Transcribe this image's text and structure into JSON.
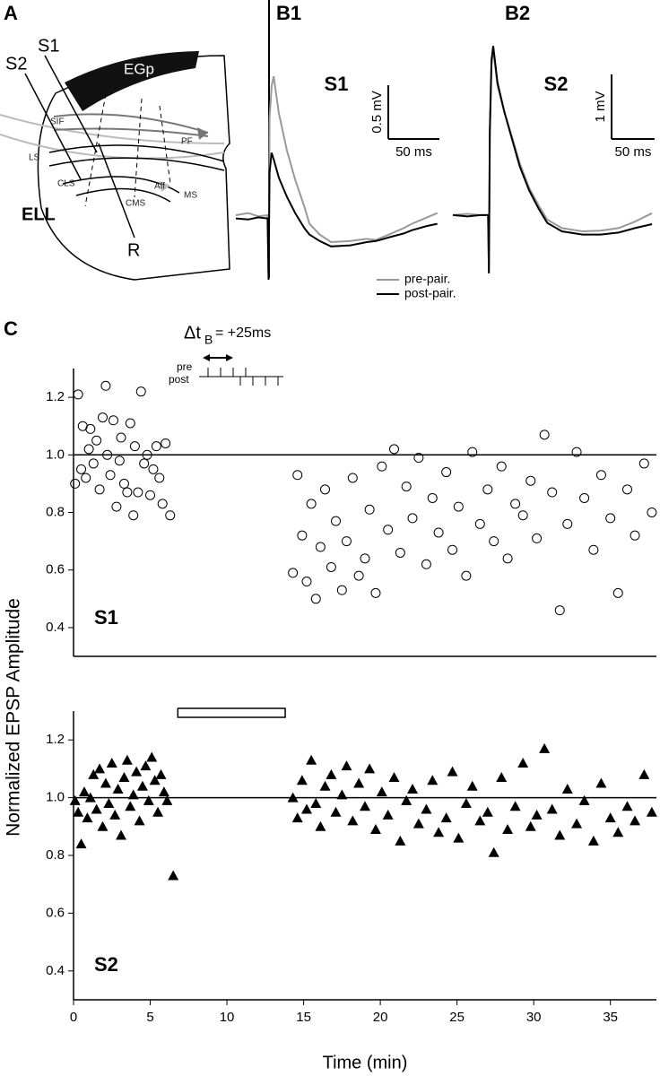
{
  "panels": [
    "A",
    "B1",
    "B2",
    "C"
  ],
  "diagram": {
    "labels": [
      "S1",
      "S2",
      "EGp",
      "SIF",
      "PF",
      "LS",
      "CLS",
      "CMS",
      "Aff",
      "MS",
      "ELL",
      "R"
    ]
  },
  "chart_data": [
    {
      "type": "line",
      "title": "S1",
      "xlim": [
        -32,
        167
      ],
      "ylim": [
        -0.6,
        2.0
      ],
      "x": [
        -32,
        -20,
        -10,
        -1,
        0,
        1,
        3,
        5,
        10,
        18,
        26,
        35,
        40,
        50,
        61,
        80,
        96,
        105,
        120,
        132,
        140,
        155,
        165
      ],
      "series": [
        {
          "name": "pre-pair.",
          "color": "#999999",
          "values": [
            0.0,
            0.02,
            -0.01,
            0.0,
            -0.6,
            0.9,
            1.2,
            1.29,
            0.95,
            0.6,
            0.33,
            0.08,
            -0.08,
            -0.18,
            -0.25,
            -0.24,
            -0.22,
            -0.23,
            -0.17,
            -0.12,
            -0.08,
            -0.02,
            0.02
          ]
        },
        {
          "name": "post-pair.",
          "color": "#000000",
          "values": [
            -0.03,
            -0.04,
            -0.02,
            -0.03,
            -0.6,
            0.4,
            0.58,
            0.52,
            0.35,
            0.17,
            0.02,
            -0.12,
            -0.18,
            -0.24,
            -0.29,
            -0.28,
            -0.25,
            -0.24,
            -0.2,
            -0.17,
            -0.14,
            -0.1,
            -0.08
          ]
        }
      ],
      "scalebar": {
        "y": 0.5,
        "y_label": "0.5 mV",
        "x": 50,
        "x_label": "50 ms"
      }
    },
    {
      "type": "line",
      "title": "S2",
      "xlim": [
        -42,
        193
      ],
      "ylim": [
        -1.0,
        3.33
      ],
      "x": [
        -42,
        -25,
        -10,
        -1,
        0,
        1,
        3,
        5,
        10,
        18,
        26,
        36,
        47,
        58,
        68,
        85,
        109,
        130,
        151,
        170,
        190
      ],
      "series": [
        {
          "color": "#999999",
          "values": [
            0.0,
            0.02,
            0.0,
            0.0,
            -0.9,
            1.2,
            2.3,
            2.57,
            2.0,
            1.6,
            1.25,
            0.8,
            0.42,
            0.15,
            -0.07,
            -0.2,
            -0.25,
            -0.24,
            -0.2,
            -0.1,
            0.03
          ]
        },
        {
          "color": "#000000",
          "values": [
            0.0,
            -0.02,
            0.0,
            0.0,
            -0.9,
            1.3,
            2.4,
            2.62,
            2.05,
            1.6,
            1.22,
            0.75,
            0.38,
            0.1,
            -0.12,
            -0.25,
            -0.3,
            -0.3,
            -0.27,
            -0.2,
            -0.14
          ]
        }
      ],
      "scalebar": {
        "y": 1,
        "y_label": "1 mV",
        "x": 50,
        "x_label": "50 ms"
      }
    },
    {
      "type": "scatter",
      "title": "S1",
      "marker": "circle",
      "color": "#000000",
      "ylabel": "Normalized EPSP Amplitude",
      "xlim": [
        0,
        38
      ],
      "ylim": [
        0.3,
        1.3
      ],
      "hline": 1,
      "yticks": [
        0.4,
        0.6,
        0.8,
        {
          "value": 1,
          "label": "1.0"
        },
        1.2
      ],
      "annotation": {
        "delta": "Δt",
        "sub": "B",
        "rest": "= +25ms",
        "pre": "pre",
        "post": "post"
      },
      "x": [
        0.1,
        0.3,
        0.5,
        0.6,
        0.8,
        1.0,
        1.1,
        1.3,
        1.5,
        1.7,
        1.9,
        2.1,
        2.2,
        2.4,
        2.6,
        2.8,
        3.0,
        3.1,
        3.3,
        3.5,
        3.7,
        3.9,
        4.0,
        4.2,
        4.4,
        4.6,
        4.8,
        5.0,
        5.2,
        5.4,
        5.6,
        5.8,
        6.0,
        6.3,
        14.3,
        14.6,
        14.9,
        15.2,
        15.5,
        15.8,
        16.1,
        16.4,
        16.8,
        17.1,
        17.5,
        17.8,
        18.2,
        18.6,
        19.0,
        19.3,
        19.7,
        20.1,
        20.5,
        20.9,
        21.3,
        21.7,
        22.1,
        22.5,
        23.0,
        23.4,
        23.8,
        24.3,
        24.7,
        25.1,
        25.6,
        26.0,
        26.5,
        27.0,
        27.4,
        27.9,
        28.3,
        28.8,
        29.3,
        29.8,
        30.2,
        30.7,
        31.2,
        31.7,
        32.2,
        32.8,
        33.3,
        33.9,
        34.4,
        35.0,
        35.5,
        36.1,
        36.6,
        37.2,
        37.7
      ],
      "values": [
        0.9,
        1.21,
        0.95,
        1.1,
        0.92,
        1.02,
        1.09,
        0.97,
        1.05,
        0.88,
        1.13,
        1.24,
        1.0,
        0.93,
        1.12,
        0.82,
        0.98,
        1.06,
        0.9,
        0.87,
        1.11,
        0.79,
        1.03,
        0.87,
        1.22,
        0.97,
        1.0,
        0.86,
        0.95,
        1.03,
        0.92,
        0.83,
        1.04,
        0.79,
        0.59,
        0.93,
        0.72,
        0.56,
        0.83,
        0.5,
        0.68,
        0.88,
        0.61,
        0.77,
        0.53,
        0.7,
        0.92,
        0.58,
        0.64,
        0.81,
        0.52,
        0.96,
        0.74,
        1.02,
        0.66,
        0.89,
        0.78,
        0.99,
        0.62,
        0.85,
        0.73,
        0.94,
        0.67,
        0.82,
        0.58,
        1.01,
        0.76,
        0.88,
        0.7,
        0.96,
        0.64,
        0.83,
        0.79,
        0.91,
        0.71,
        1.07,
        0.87,
        0.46,
        0.76,
        1.01,
        0.85,
        0.67,
        0.93,
        0.78,
        0.52,
        0.88,
        0.72,
        0.97,
        0.8
      ]
    },
    {
      "type": "scatter",
      "title": "S2",
      "marker": "triangle",
      "color": "#000000",
      "xlabel": "Time (min)",
      "xlim": [
        0,
        38
      ],
      "ylim": [
        0.3,
        1.3
      ],
      "hline": 1,
      "xticks": [
        0,
        5,
        10,
        15,
        20,
        25,
        30,
        35
      ],
      "yticks": [
        0.4,
        0.6,
        0.8,
        {
          "value": 1,
          "label": "1.0"
        },
        1.2
      ],
      "pairing_period": [
        6.8,
        13.8
      ],
      "x": [
        0.1,
        0.3,
        0.5,
        0.7,
        0.9,
        1.1,
        1.3,
        1.5,
        1.7,
        1.9,
        2.1,
        2.3,
        2.5,
        2.7,
        2.9,
        3.1,
        3.3,
        3.5,
        3.7,
        3.9,
        4.1,
        4.3,
        4.5,
        4.7,
        4.9,
        5.1,
        5.3,
        5.5,
        5.7,
        5.9,
        6.1,
        6.5,
        14.3,
        14.6,
        14.9,
        15.2,
        15.5,
        15.8,
        16.1,
        16.4,
        16.8,
        17.1,
        17.5,
        17.8,
        18.2,
        18.6,
        19.0,
        19.3,
        19.7,
        20.1,
        20.5,
        20.9,
        21.3,
        21.7,
        22.1,
        22.5,
        23.0,
        23.4,
        23.8,
        24.3,
        24.7,
        25.1,
        25.6,
        26.0,
        26.5,
        27.0,
        27.4,
        27.9,
        28.3,
        28.8,
        29.3,
        29.8,
        30.2,
        30.7,
        31.2,
        31.7,
        32.2,
        32.8,
        33.3,
        33.9,
        34.4,
        35.0,
        35.5,
        36.1,
        36.6,
        37.2,
        37.7
      ],
      "values": [
        0.99,
        0.95,
        0.84,
        1.02,
        0.93,
        1.0,
        1.08,
        0.96,
        1.1,
        0.9,
        1.05,
        0.98,
        1.12,
        0.94,
        1.03,
        0.87,
        1.07,
        1.13,
        0.97,
        1.01,
        1.09,
        0.92,
        1.04,
        1.11,
        0.99,
        1.14,
        1.06,
        0.95,
        1.08,
        1.02,
        0.99,
        0.73,
        1.0,
        0.93,
        1.06,
        0.96,
        1.13,
        0.98,
        0.9,
        1.04,
        1.08,
        0.95,
        1.01,
        1.11,
        0.92,
        1.05,
        0.97,
        1.1,
        0.89,
        1.02,
        0.94,
        1.07,
        0.85,
        0.99,
        1.03,
        0.91,
        0.96,
        1.06,
        0.88,
        0.93,
        1.09,
        0.86,
        0.98,
        1.04,
        0.92,
        0.95,
        0.81,
        1.07,
        0.89,
        0.97,
        1.12,
        0.9,
        0.94,
        1.17,
        0.96,
        0.87,
        1.03,
        0.91,
        0.99,
        0.85,
        1.05,
        0.93,
        0.88,
        0.97,
        0.92,
        1.08,
        0.95
      ]
    }
  ]
}
